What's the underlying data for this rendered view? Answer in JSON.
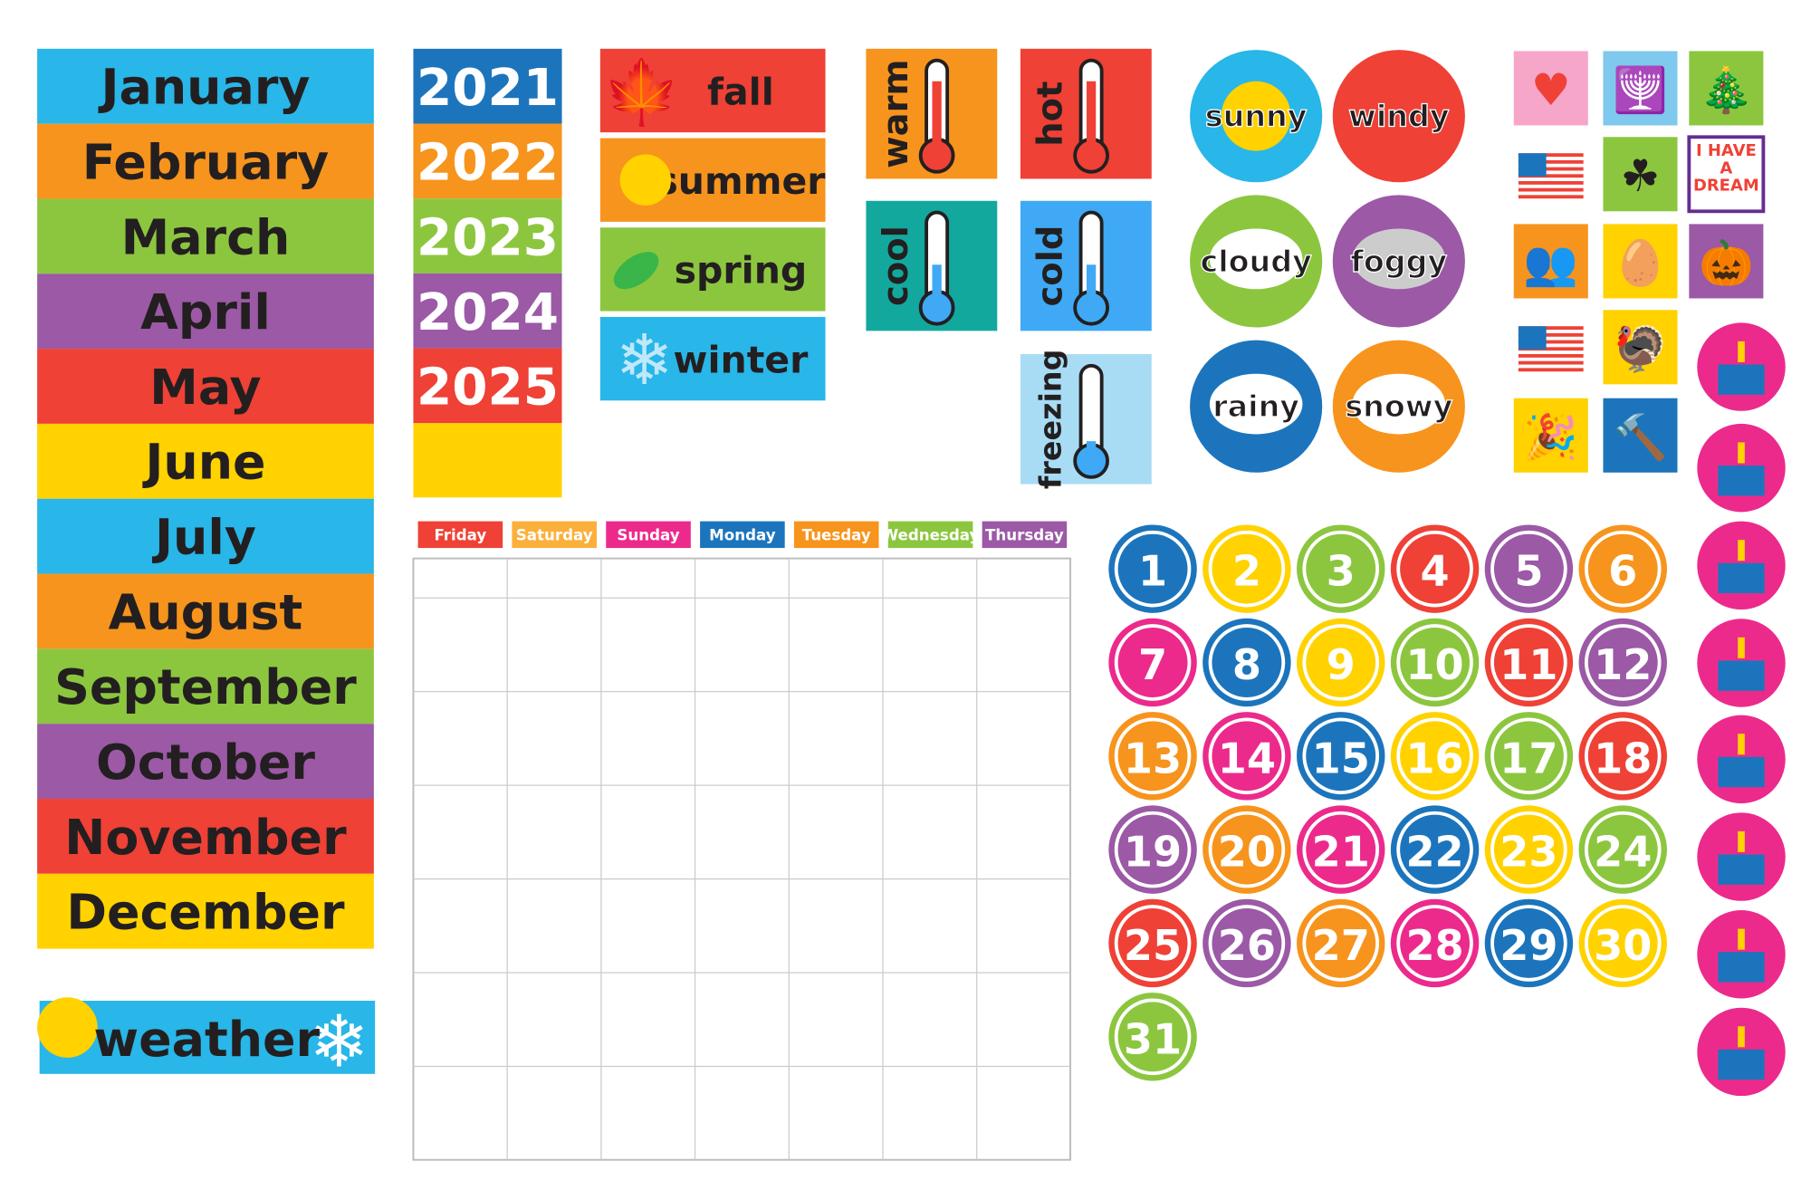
{
  "months": [
    "January",
    "February",
    "March",
    "April",
    "May",
    "June",
    "July",
    "August",
    "September",
    "October",
    "November",
    "December"
  ],
  "weather_label": "weather",
  "years": [
    "2021",
    "2022",
    "2023",
    "2024",
    "2025"
  ],
  "seasons": [
    "fall",
    "summer",
    "spring",
    "winter"
  ],
  "temperatures": [
    "warm",
    "hot",
    "cool",
    "cold",
    "freezing"
  ],
  "weather": [
    "sunny",
    "windy",
    "cloudy",
    "foggy",
    "rainy",
    "snowy"
  ],
  "holiday_text": [
    "I HAVE",
    "A",
    "DREAM"
  ],
  "weekdays": [
    "Friday",
    "Saturday",
    "Sunday",
    "Monday",
    "Tuesday",
    "Wednesday",
    "Thursday"
  ],
  "dates": [
    1,
    2,
    3,
    4,
    5,
    6,
    7,
    8,
    9,
    10,
    11,
    12,
    13,
    14,
    15,
    16,
    17,
    18,
    19,
    20,
    21,
    22,
    23,
    24,
    25,
    26,
    27,
    28,
    29,
    30,
    31
  ]
}
